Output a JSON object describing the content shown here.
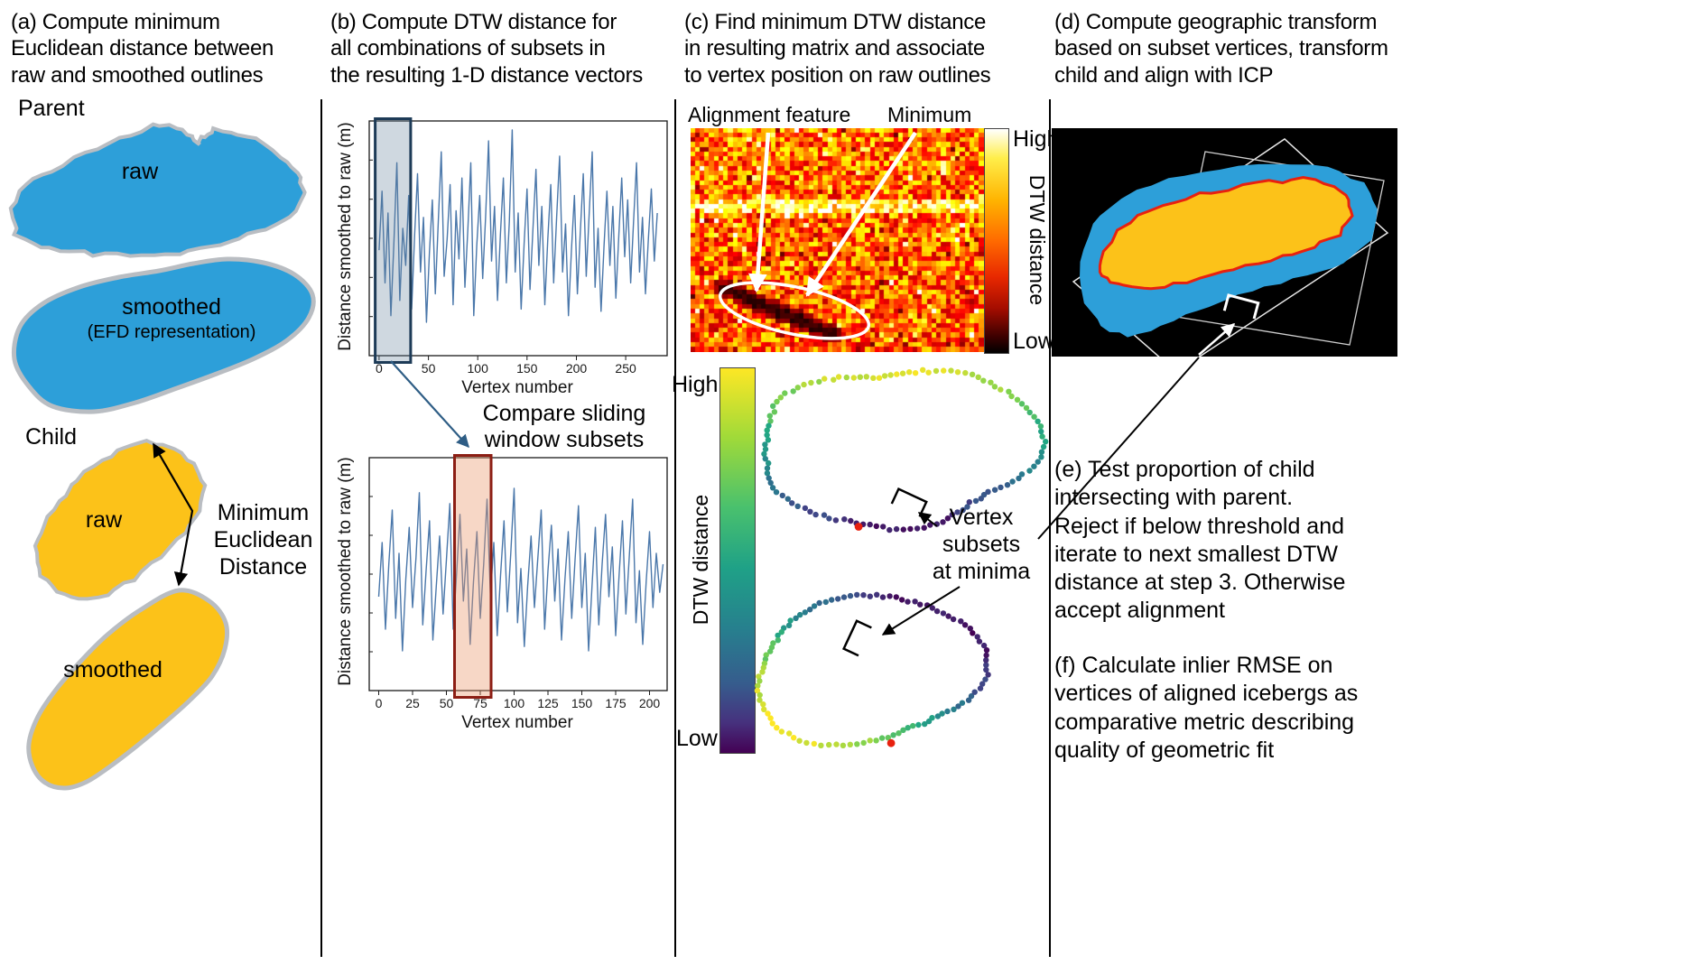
{
  "colors": {
    "parent_blue": "#2d9fd9",
    "child_yellow": "#fcc219",
    "outline_gray": "#b9bdc2",
    "series_blue": "#4a77aa",
    "window1_fill": "rgba(96,125,152,0.30)",
    "window1_border": "#1d3b57",
    "window2_fill": "rgba(233,150,104,0.38)",
    "window2_border": "#8c1e14",
    "aligned_red": "#e8210f",
    "arrow_slate": "#2e5d85"
  },
  "panel_a": {
    "title": "(a) Compute minimum\nEuclidean distance between\nraw and smoothed outlines",
    "parent_label": "Parent",
    "child_label": "Child",
    "parent_raw_label": "raw",
    "parent_smoothed_label": "smoothed",
    "parent_efd_label": "(EFD representation)",
    "child_raw_label": "raw",
    "child_smoothed_label": "smoothed",
    "min_euclidean_label": "Minimum\nEuclidean\nDistance"
  },
  "panel_b": {
    "title": "(b) Compute DTW distance for\nall combinations of subsets in\nthe resulting 1-D distance vectors",
    "compare_label": "Compare sliding\nwindow subsets"
  },
  "panel_c": {
    "title": "(c) Find minimum DTW distance\nin resulting matrix and associate\nto vertex position  on raw outlines",
    "alignment_feature_label": "Alignment feature",
    "minimum_label": "Minimum",
    "matrix_colorbar": {
      "high": "High",
      "low": "Low",
      "label": "DTW distance"
    },
    "outline_colorbar": {
      "high": "High",
      "low": "Low",
      "label": "DTW distance"
    },
    "vertex_subsets_label": "Vertex\nsubsets\nat minima"
  },
  "panel_d": {
    "title": "(d) Compute geographic transform\nbased on subset vertices, transform\nchild and align with ICP"
  },
  "panel_e": {
    "text": "(e) Test proportion of child\nintersecting with parent.\nReject if below threshold and\niterate to next smallest DTW\ndistance at step 3. Otherwise\naccept alignment"
  },
  "panel_f": {
    "text": "(f) Calculate inlier RMSE on\nvertices of aligned icebergs as\ncomparative metric describing\nquality of geometric fit"
  },
  "chart_data": [
    {
      "type": "line",
      "name": "distance-vector-parent",
      "xlabel": "Vertex number",
      "ylabel": "Distance smoothed to raw (m)",
      "x_ticks": [
        0,
        50,
        100,
        150,
        200,
        250
      ],
      "xlim": [
        -10,
        292
      ],
      "x_step": 3.0,
      "highlight_window": {
        "x0": -4,
        "x1": 32
      },
      "values": [
        0.45,
        0.72,
        0.3,
        0.62,
        0.15,
        0.48,
        0.85,
        0.22,
        0.55,
        0.38,
        0.7,
        0.18,
        0.52,
        0.8,
        0.35,
        0.6,
        0.12,
        0.44,
        0.68,
        0.25,
        0.58,
        0.9,
        0.33,
        0.5,
        0.75,
        0.2,
        0.63,
        0.41,
        0.78,
        0.28,
        0.55,
        0.85,
        0.15,
        0.47,
        0.7,
        0.32,
        0.6,
        0.95,
        0.4,
        0.65,
        0.22,
        0.52,
        0.78,
        0.3,
        0.58,
        1.0,
        0.35,
        0.62,
        0.18,
        0.48,
        0.73,
        0.27,
        0.55,
        0.82,
        0.38,
        0.65,
        0.2,
        0.5,
        0.75,
        0.3,
        0.6,
        0.88,
        0.35,
        0.57,
        0.15,
        0.45,
        0.7,
        0.25,
        0.53,
        0.8,
        0.33,
        0.62,
        0.9,
        0.28,
        0.55,
        0.17,
        0.47,
        0.72,
        0.38,
        0.65,
        0.23,
        0.52,
        0.78,
        0.42,
        0.68,
        0.3,
        0.58,
        0.85,
        0.35,
        0.6,
        0.25,
        0.5,
        0.73,
        0.4,
        0.62
      ]
    },
    {
      "type": "line",
      "name": "distance-vector-child",
      "xlabel": "Vertex number",
      "ylabel": "Distance smoothed to raw (m)",
      "x_ticks": [
        0,
        25,
        50,
        75,
        100,
        125,
        150,
        175,
        200
      ],
      "xlim": [
        -7,
        213
      ],
      "x_step": 2.5,
      "highlight_window": {
        "x0": 56,
        "x1": 83
      },
      "values": [
        0.4,
        0.65,
        0.25,
        0.55,
        0.8,
        0.3,
        0.6,
        0.15,
        0.48,
        0.72,
        0.35,
        0.58,
        0.88,
        0.27,
        0.52,
        0.75,
        0.2,
        0.45,
        0.68,
        0.32,
        0.57,
        0.83,
        0.25,
        0.5,
        0.78,
        0.38,
        0.62,
        0.18,
        0.47,
        0.7,
        0.3,
        0.55,
        0.85,
        0.4,
        0.65,
        0.22,
        0.5,
        0.75,
        0.33,
        0.6,
        0.9,
        0.28,
        0.53,
        0.17,
        0.45,
        0.68,
        0.35,
        0.58,
        0.8,
        0.25,
        0.52,
        0.73,
        0.38,
        0.62,
        0.2,
        0.48,
        0.7,
        0.3,
        0.57,
        0.82,
        0.35,
        0.6,
        0.15,
        0.45,
        0.72,
        0.27,
        0.55,
        0.78,
        0.4,
        0.63,
        0.22,
        0.5,
        0.75,
        0.32,
        0.58,
        0.85,
        0.28,
        0.52,
        0.18,
        0.47,
        0.7,
        0.35,
        0.6,
        0.42,
        0.55
      ]
    },
    {
      "type": "heatmap",
      "name": "dtw-distance-matrix",
      "colormap": "hot",
      "cols": 62,
      "rows": 47,
      "seed": 20240517,
      "colorbar": {
        "high": "High",
        "low": "Low",
        "label": "DTW distance"
      },
      "annotations": [
        "Alignment feature",
        "Minimum"
      ]
    },
    {
      "type": "scatter",
      "name": "parent-outline-colored-by-dtw",
      "colormap": "viridis",
      "points": 115
    },
    {
      "type": "scatter",
      "name": "child-outline-colored-by-dtw",
      "colormap": "viridis",
      "points": 105
    }
  ]
}
